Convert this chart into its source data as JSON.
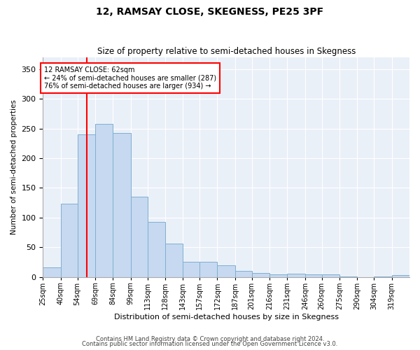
{
  "title": "12, RAMSAY CLOSE, SKEGNESS, PE25 3PF",
  "subtitle": "Size of property relative to semi-detached houses in Skegness",
  "xlabel": "Distribution of semi-detached houses by size in Skegness",
  "ylabel": "Number of semi-detached properties",
  "categories": [
    "25sqm",
    "40sqm",
    "54sqm",
    "69sqm",
    "84sqm",
    "99sqm",
    "113sqm",
    "128sqm",
    "143sqm",
    "157sqm",
    "172sqm",
    "187sqm",
    "201sqm",
    "216sqm",
    "231sqm",
    "246sqm",
    "260sqm",
    "275sqm",
    "290sqm",
    "304sqm",
    "319sqm"
  ],
  "values": [
    16,
    123,
    240,
    258,
    243,
    135,
    93,
    56,
    25,
    25,
    19,
    10,
    7,
    4,
    5,
    4,
    4,
    1,
    0,
    1,
    3
  ],
  "bar_color": "#c6d9f0",
  "bar_edge_color": "#7fafd0",
  "redline_x": 62,
  "bin_edges": [
    25,
    40,
    54,
    69,
    84,
    99,
    113,
    128,
    143,
    157,
    172,
    187,
    201,
    216,
    231,
    246,
    260,
    275,
    290,
    304,
    319,
    334
  ],
  "annotation_title": "12 RAMSAY CLOSE: 62sqm",
  "annotation_line1": "← 24% of semi-detached houses are smaller (287)",
  "annotation_line2": "76% of semi-detached houses are larger (934) →",
  "ylim": [
    0,
    370
  ],
  "yticks": [
    0,
    50,
    100,
    150,
    200,
    250,
    300,
    350
  ],
  "footer1": "Contains HM Land Registry data © Crown copyright and database right 2024.",
  "footer2": "Contains public sector information licensed under the Open Government Licence v3.0.",
  "plot_bg": "#eaf0f8"
}
